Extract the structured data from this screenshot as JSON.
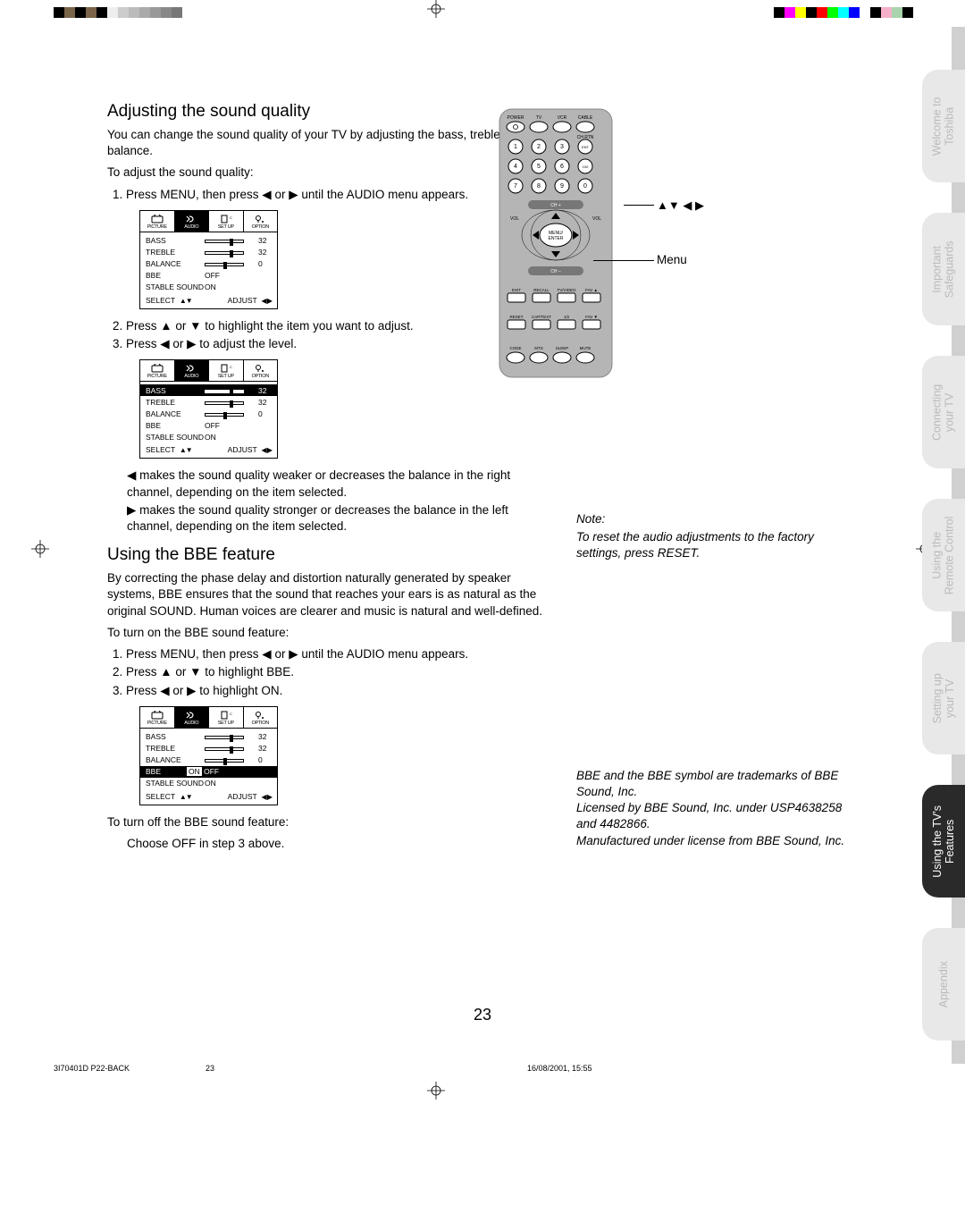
{
  "topbar": {
    "left_colors": [
      "#000000",
      "#7a644a",
      "#000000",
      "#7a644a",
      "#000000",
      "#eeeeee",
      "#cccccc",
      "#bbbbbb",
      "#aaaaaa",
      "#999999",
      "#888888",
      "#777777"
    ],
    "right_colors": [
      "#000000",
      "#ff00ff",
      "#ffff00",
      "#000000",
      "#ff0000",
      "#00ff00",
      "#00ffff",
      "#0000ff",
      "#ffffff",
      "#000000",
      "#f5b0c9",
      "#a9d4ad",
      "#000000"
    ]
  },
  "section1": {
    "title": "Adjusting the sound quality",
    "p1": "You can change the sound quality of your TV by adjusting the bass, treble, and balance.",
    "p2": "To adjust the sound quality:",
    "step1": "1. Press MENU, then press ◀ or ▶ until the AUDIO menu appears.",
    "step2": "2. Press ▲ or ▼ to highlight the item you want to adjust.",
    "step3": "3. Press ◀ or ▶ to adjust the level.",
    "note_l": "◀ makes the sound quality weaker or decreases the balance in the right channel, depending on the item selected.",
    "note_r": "▶ makes the sound quality stronger or decreases the balance in the left channel, depending on the item selected."
  },
  "section2": {
    "title": "Using the BBE feature",
    "p1": "By correcting the phase delay and distortion naturally generated by speaker systems, BBE ensures that the sound that reaches your ears is as natural as the original SOUND. Human voices are clearer and music is natural and well-defined.",
    "p2": "To turn on the BBE sound feature:",
    "step1": "1. Press MENU, then press ◀ or ▶ until the AUDIO menu appears.",
    "step2": "2. Press ▲ or ▼ to highlight BBE.",
    "step3": "3. Press ◀ or ▶ to highlight ON.",
    "off_p": "To turn off the BBE sound feature:",
    "off_step": "Choose OFF in step 3 above."
  },
  "menu": {
    "tabs": [
      "PICTURE",
      "AUDIO",
      "SET UP",
      "OPTION"
    ],
    "rows": {
      "bass": {
        "label": "BASS",
        "value": 32,
        "knob": 0.65
      },
      "treble": {
        "label": "TREBLE",
        "value": 32,
        "knob": 0.65
      },
      "balance": {
        "label": "BALANCE",
        "value": 0,
        "knob": 0.5
      },
      "bbe": {
        "label": "BBE",
        "off": "OFF",
        "on": "ON",
        "onoff": "ON  OFF"
      },
      "stable": {
        "label": "STABLE SOUND",
        "val": "ON"
      }
    },
    "footer": {
      "select": "SELECT",
      "st": "▲▼",
      "adjust": "ADJUST",
      "at": "◀ ▶"
    }
  },
  "remote": {
    "arrows_label": "▲▼ ◀ ▶",
    "menu_label": "Menu",
    "row1": [
      "POWER",
      "TV",
      "VCR",
      "CABLE"
    ],
    "chrtn": "CH RTN",
    "buttons_row1": [
      "1",
      "2",
      "3",
      "ENT"
    ],
    "buttons_row2": [
      "4",
      "5",
      "6",
      "100"
    ],
    "buttons_row3": [
      "7",
      "8",
      "9",
      "0"
    ],
    "chp": "CH +",
    "chm": "CH –",
    "voll": "VOL",
    "volr": "VOL",
    "mid": "MENU/\nENTER",
    "rowA": [
      "EXIT",
      "RECALL",
      "TV/VIDEO",
      "FAV ▲"
    ],
    "rowB": [
      "RESET",
      "CAP/TEXT",
      "1/2",
      "FAV ▼"
    ],
    "rowC": [
      "CODE",
      "MTS",
      "SLEEP",
      "MUTE"
    ]
  },
  "note": {
    "title": "Note:",
    "body": "To reset the audio adjustments to the factory settings, press RESET."
  },
  "trademark": {
    "l1": "BBE and the BBE symbol are trademarks of BBE Sound, Inc.",
    "l2": "Licensed by BBE Sound, Inc. under USP4638258 and 4482866.",
    "l3": "Manufactured under license from BBE Sound, Inc."
  },
  "sidetabs": [
    {
      "text": "Welcome to\nToshiba",
      "class": "light"
    },
    {
      "text": "Important\nSafeguards",
      "class": "light"
    },
    {
      "text": "Connecting\nyour TV",
      "class": "light"
    },
    {
      "text": "Using the\nRemote Control",
      "class": "light"
    },
    {
      "text": "Setting up\nyour TV",
      "class": "light"
    },
    {
      "text": "Using the TV's\nFeatures",
      "class": "dark"
    },
    {
      "text": "Appendix",
      "class": "light"
    }
  ],
  "pagenum": "23",
  "footer": {
    "left": "3I70401D P22-BACK",
    "mid": "23",
    "right": "16/08/2001, 15:55"
  }
}
